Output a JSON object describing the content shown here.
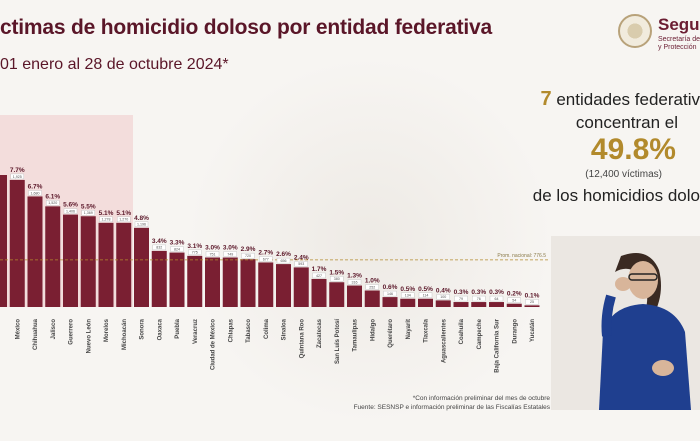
{
  "header": {
    "title": "ctimas de homicidio doloso por entidad federativa",
    "subtitle": "01 enero al 28 de octubre 2024*"
  },
  "logo": {
    "word": "Segu",
    "line1": "Secretaría de",
    "line2": "y Protección"
  },
  "summary": {
    "count": "7",
    "line1_rest": " entidades federativ",
    "line2": "concentran el",
    "percent": "49.8%",
    "victims": "(12,400 víctimas)",
    "line4": "de los homicidios dolo"
  },
  "footnote": {
    "line1": "*Con información preliminar del mes de octubre",
    "line2": "Fuente: SESNSP e información preliminar de las Fiscalías Estatales"
  },
  "chart_data": {
    "type": "bar",
    "categories": [
      "",
      "México",
      "Chihuahua",
      "Jalisco",
      "Guerrero",
      "Nuevo León",
      "Morelos",
      "Michoacán",
      "Sonora",
      "Oaxaca",
      "Puebla",
      "Veracruz",
      "Ciudad de México",
      "Chiapas",
      "Tabasco",
      "Colima",
      "Sinaloa",
      "Quintana Roo",
      "Zacatecas",
      "San Luis Potosí",
      "Tamaulipas",
      "Hidalgo",
      "Querétaro",
      "Nayarit",
      "Tlaxcala",
      "Aguascalientes",
      "Coahuila",
      "Campeche",
      "Baja California Sur",
      "Durango",
      "Yucatán"
    ],
    "values": [
      8.0,
      7.7,
      6.7,
      6.1,
      5.6,
      5.5,
      5.1,
      5.1,
      4.8,
      3.4,
      3.3,
      3.1,
      3.0,
      3.0,
      2.9,
      2.7,
      2.6,
      2.4,
      1.7,
      1.5,
      1.3,
      1.0,
      0.6,
      0.5,
      0.5,
      0.4,
      0.3,
      0.3,
      0.3,
      0.2,
      0.1
    ],
    "value_labels": [
      "",
      "7.7%",
      "6.7%",
      "6.1%",
      "5.6%",
      "5.5%",
      "5.1%",
      "5.1%",
      "4.8%",
      "3.4%",
      "3.3%",
      "3.1%",
      "3.0%",
      "3.0%",
      "2.9%",
      "2.7%",
      "2.6%",
      "2.4%",
      "1.7%",
      "1.5%",
      "1.3%",
      "1.0%",
      "0.6%",
      "0.5%",
      "0.5%",
      "0.4%",
      "0.3%",
      "0.3%",
      "0.3%",
      "0.2%",
      "0.1%"
    ],
    "count_labels": [
      "",
      "1,925",
      "1,680",
      "1,520",
      "1,406",
      "1,369",
      "1,278",
      "1,270",
      "1,196",
      "832",
      "824",
      "775",
      "751",
      "749",
      "720",
      "677",
      "656",
      "593",
      "427",
      "380",
      "316",
      "252",
      "146",
      "134",
      "114",
      "100",
      "79",
      "76",
      "64",
      "54",
      "25"
    ],
    "highlight_count": 7,
    "highlight_color": "#f2d4d4",
    "bar_color": "#7a1f32",
    "reference_label": "Prom. nacional: 776.5",
    "reference_value": 3.1,
    "ylim": [
      0,
      8
    ]
  }
}
